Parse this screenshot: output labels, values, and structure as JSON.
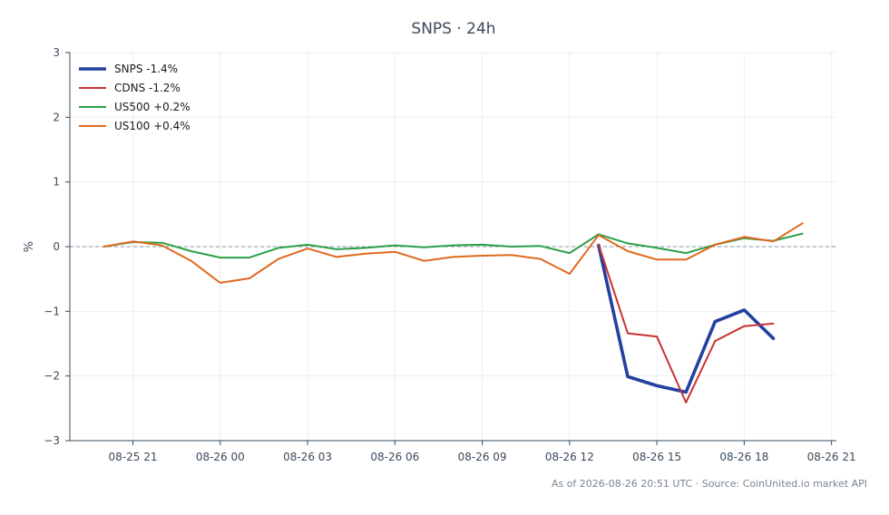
{
  "chart_data": {
    "type": "line",
    "title": "SNPS · 24h",
    "xlabel": "",
    "ylabel": "%",
    "ylim": [
      -3,
      3
    ],
    "xlim": [
      "2026-08-25 18:50",
      "2026-08-26 21:10"
    ],
    "y_ticks": [
      -3,
      -2,
      -1,
      0,
      1,
      2,
      3
    ],
    "y_tick_labels": [
      "−3",
      "−2",
      "−1",
      "0",
      "1",
      "2",
      "3"
    ],
    "x_ticks": [
      "2026-08-25 21:00",
      "2026-08-26 00:00",
      "2026-08-26 03:00",
      "2026-08-26 06:00",
      "2026-08-26 09:00",
      "2026-08-26 12:00",
      "2026-08-26 15:00",
      "2026-08-26 18:00",
      "2026-08-26 21:00"
    ],
    "x_tick_labels": [
      "08-25 21",
      "08-26 00",
      "08-26 03",
      "08-26 06",
      "08-26 09",
      "08-26 12",
      "08-26 15",
      "08-26 18",
      "08-26 21"
    ],
    "grid": true,
    "zero_line": true,
    "legend_position": "top-left",
    "series": [
      {
        "name": "SNPS -1.4%",
        "color": "#2340a0",
        "emphasis": true,
        "x": [
          "2026-08-26 13:00",
          "2026-08-26 14:00",
          "2026-08-26 15:00",
          "2026-08-26 16:00",
          "2026-08-26 17:00",
          "2026-08-26 18:00",
          "2026-08-26 19:00"
        ],
        "y": [
          0.02,
          -2.01,
          -2.15,
          -2.25,
          -1.16,
          -0.98,
          -1.42
        ]
      },
      {
        "name": "CDNS -1.2%",
        "color": "#c83232",
        "x": [
          "2026-08-26 13:00",
          "2026-08-26 14:00",
          "2026-08-26 15:00",
          "2026-08-26 16:00",
          "2026-08-26 17:00",
          "2026-08-26 18:00",
          "2026-08-26 19:00"
        ],
        "y": [
          0.03,
          -1.34,
          -1.39,
          -2.41,
          -1.46,
          -1.23,
          -1.19
        ]
      },
      {
        "name": "US500 +0.2%",
        "color": "#2ca048",
        "x": [
          "2026-08-25 20:00",
          "2026-08-25 21:00",
          "2026-08-25 22:00",
          "2026-08-25 23:00",
          "2026-08-26 00:00",
          "2026-08-26 01:00",
          "2026-08-26 02:00",
          "2026-08-26 03:00",
          "2026-08-26 04:00",
          "2026-08-26 05:00",
          "2026-08-26 06:00",
          "2026-08-26 07:00",
          "2026-08-26 08:00",
          "2026-08-26 09:00",
          "2026-08-26 10:00",
          "2026-08-26 11:00",
          "2026-08-26 12:00",
          "2026-08-26 13:00",
          "2026-08-26 14:00",
          "2026-08-26 15:00",
          "2026-08-26 16:00",
          "2026-08-26 17:00",
          "2026-08-26 18:00",
          "2026-08-26 19:00",
          "2026-08-26 20:00"
        ],
        "y": [
          0.0,
          0.07,
          0.06,
          -0.07,
          -0.17,
          -0.17,
          -0.02,
          0.03,
          -0.04,
          -0.02,
          0.02,
          -0.01,
          0.02,
          0.03,
          0.0,
          0.01,
          -0.1,
          0.19,
          0.05,
          -0.02,
          -0.1,
          0.03,
          0.13,
          0.09,
          0.2
        ]
      },
      {
        "name": "US100 +0.4%",
        "color": "#e0691e",
        "x": [
          "2026-08-25 20:00",
          "2026-08-25 21:00",
          "2026-08-25 22:00",
          "2026-08-25 23:00",
          "2026-08-26 00:00",
          "2026-08-26 01:00",
          "2026-08-26 02:00",
          "2026-08-26 03:00",
          "2026-08-26 04:00",
          "2026-08-26 05:00",
          "2026-08-26 06:00",
          "2026-08-26 07:00",
          "2026-08-26 08:00",
          "2026-08-26 09:00",
          "2026-08-26 10:00",
          "2026-08-26 11:00",
          "2026-08-26 12:00",
          "2026-08-26 13:00",
          "2026-08-26 14:00",
          "2026-08-26 15:00",
          "2026-08-26 16:00",
          "2026-08-26 17:00",
          "2026-08-26 18:00",
          "2026-08-26 19:00",
          "2026-08-26 20:00"
        ],
        "y": [
          0.0,
          0.08,
          0.02,
          -0.22,
          -0.56,
          -0.49,
          -0.19,
          -0.03,
          -0.16,
          -0.11,
          -0.08,
          -0.22,
          -0.16,
          -0.14,
          -0.13,
          -0.19,
          -0.42,
          0.18,
          -0.07,
          -0.2,
          -0.2,
          0.03,
          0.15,
          0.08,
          0.36
        ]
      }
    ],
    "footer": "As of 2026-08-26 20:51 UTC · Source: CoinUnited.io market API"
  }
}
